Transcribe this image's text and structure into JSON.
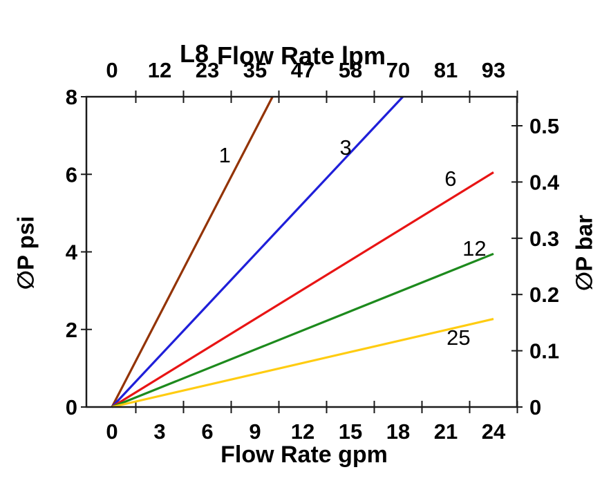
{
  "chart_data": {
    "type": "line",
    "title": {
      "model": "L8",
      "text": "Flow Rate lpm"
    },
    "axes": {
      "top": {
        "unit": "lpm",
        "tick_labels": [
          "0",
          "12",
          "23",
          "35",
          "47",
          "58",
          "70",
          "81",
          "93"
        ],
        "tick_label_positions_gpm": [
          0,
          3,
          6,
          9,
          12,
          15,
          18,
          21,
          24
        ],
        "tick_marks_gpm": [
          1.5,
          4.5,
          7.5,
          10.5,
          13.5,
          16.5,
          19.5,
          22.5,
          25.5
        ]
      },
      "bottom": {
        "label": "Flow Rate gpm",
        "tick_labels": [
          "0",
          "3",
          "6",
          "9",
          "12",
          "15",
          "18",
          "21",
          "24"
        ],
        "tick_label_positions_gpm": [
          0,
          3,
          6,
          9,
          12,
          15,
          18,
          21,
          24
        ],
        "tick_marks_gpm": [
          1.5,
          4.5,
          7.5,
          10.5,
          13.5,
          16.5,
          19.5,
          22.5,
          25.5
        ]
      },
      "left": {
        "label": "∅P psi",
        "ticks": [
          0,
          2,
          4,
          6,
          8
        ],
        "tick_labels": [
          "0",
          "2",
          "4",
          "6",
          "8"
        ],
        "range_psi": [
          0,
          8
        ]
      },
      "right": {
        "label": "∅P bar",
        "ticks": [
          0,
          0.1,
          0.2,
          0.3,
          0.4,
          0.5
        ],
        "tick_labels": [
          "0",
          "0.1",
          "0.2",
          "0.3",
          "0.4",
          "0.5"
        ],
        "psi_per_bar": 14.5038
      }
    },
    "series": [
      {
        "label": "1",
        "color": "#933305",
        "points": [
          [
            0,
            0
          ],
          [
            10.1,
            8
          ]
        ],
        "label_pos_gpm_psi": [
          7.1,
          6.5
        ]
      },
      {
        "label": "3",
        "color": "#1f1fd9",
        "points": [
          [
            0,
            0
          ],
          [
            18.3,
            8
          ]
        ],
        "label_pos_gpm_psi": [
          14.7,
          6.7
        ]
      },
      {
        "label": "6",
        "color": "#e81414",
        "points": [
          [
            0,
            0
          ],
          [
            24,
            6.05
          ]
        ],
        "label_pos_gpm_psi": [
          21.3,
          5.9
        ]
      },
      {
        "label": "12",
        "color": "#1d8a1d",
        "points": [
          [
            0,
            0
          ],
          [
            24,
            3.95
          ]
        ],
        "label_pos_gpm_psi": [
          22.8,
          4.1
        ]
      },
      {
        "label": "25",
        "color": "#ffcc11",
        "points": [
          [
            0,
            0
          ],
          [
            24,
            2.27
          ]
        ],
        "label_pos_gpm_psi": [
          21.8,
          1.8
        ]
      }
    ],
    "style": {
      "axis_color": "#1a1a1a",
      "text_color": "#000000",
      "background": "#ffffff"
    },
    "grid": false,
    "legend": "inline-labels"
  }
}
